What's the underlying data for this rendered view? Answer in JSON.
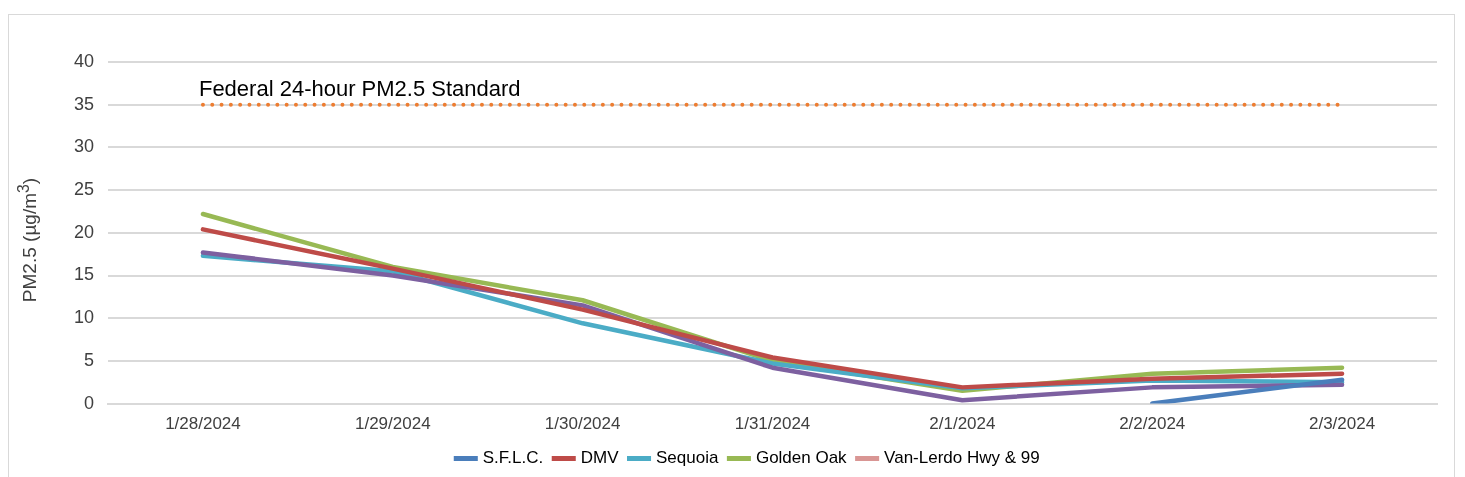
{
  "chart_data": {
    "type": "line",
    "ylabel": "PM2.5 (µg/m$^{3}$)",
    "categories": [
      "1/28/2024",
      "1/29/2024",
      "1/30/2024",
      "1/31/2024",
      "2/1/2024",
      "2/2/2024",
      "2/3/2024"
    ],
    "series": [
      {
        "name": "S.F.L.C.",
        "color": "#4a7ebb",
        "values": [
          null,
          null,
          null,
          null,
          null,
          0,
          2.8
        ]
      },
      {
        "name": "DMV",
        "color": "#be4b48",
        "values": [
          20.4,
          15.8,
          11,
          5.4,
          1.9,
          2.9,
          3.5
        ]
      },
      {
        "color": "#7d60a0",
        "values": [
          17.7,
          15,
          11.5,
          4.2,
          0.4,
          1.9,
          2.2
        ]
      },
      {
        "name": "Sequoia",
        "color": "#4bacc6",
        "values": [
          17.3,
          15.5,
          9.4,
          4.7,
          1.8,
          2.7,
          2.5
        ]
      },
      {
        "name": "Golden Oak",
        "color": "#98b954",
        "values": [
          22.2,
          16,
          12.1,
          5,
          1.5,
          3.5,
          4.2
        ]
      },
      {
        "name": "Van-Lerdo Hwy & 99",
        "color": "#d99694",
        "values": [
          null,
          null,
          null,
          null,
          null,
          null,
          null
        ]
      }
    ],
    "ylim": [
      0,
      40
    ],
    "yticks": [
      0,
      5,
      10,
      15,
      20,
      25,
      30,
      35,
      40
    ],
    "grid": "y",
    "legend": "bottom",
    "marker": "none",
    "line_style": "solid",
    "ref_lines": [
      {
        "axis": "y",
        "value": 35,
        "label": "Federal 24-hour PM2.5 Standard",
        "color": "#ed7d31",
        "line_style": "dotted"
      }
    ]
  }
}
